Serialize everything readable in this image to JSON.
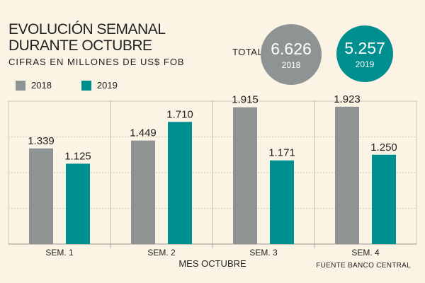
{
  "header": {
    "title": "EVOLUCIÓN SEMANAL DURANTE OCTUBRE",
    "subtitle": "CIFRAS EN MILLONES DE US$ FOB"
  },
  "totals": {
    "label": "TOTAL",
    "items": [
      {
        "value": "6.626",
        "year": "2018",
        "color": "#8e9494"
      },
      {
        "value": "5.257",
        "year": "2019",
        "color": "#008f8f"
      }
    ]
  },
  "legend": [
    {
      "label": "2018",
      "color": "#8e9494"
    },
    {
      "label": "2019",
      "color": "#008f8f"
    }
  ],
  "chart_data": {
    "type": "bar",
    "categories": [
      "SEM. 1",
      "SEM. 2",
      "SEM. 3",
      "SEM. 4"
    ],
    "series": [
      {
        "name": "2018",
        "color": "#8e9494",
        "values": [
          1339,
          1449,
          1915,
          1923
        ],
        "labels": [
          "1.339",
          "1.449",
          "1.915",
          "1.923"
        ]
      },
      {
        "name": "2019",
        "color": "#008f8f",
        "values": [
          1125,
          1710,
          1171,
          1250
        ],
        "labels": [
          "1.125",
          "1.710",
          "1.171",
          "1.250"
        ]
      }
    ],
    "xlabel": "MES OCTUBRE",
    "ylim": [
      0,
      2000
    ],
    "grid": true,
    "legend_position": "top-left",
    "source": "FUENTE BANCO CENTRAL"
  }
}
